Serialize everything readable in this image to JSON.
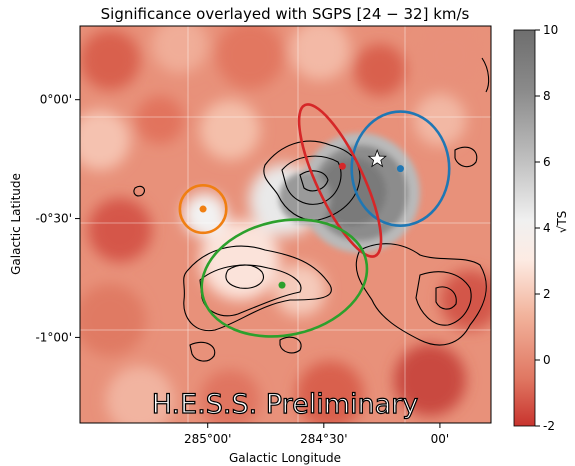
{
  "chart_data": {
    "type": "heatmap",
    "title": "Significance overlayed with SGPS [24 − 32] km/s",
    "xlabel": "Galactic Longitude",
    "ylabel": "Galactic Latitude",
    "x_ticks": [
      {
        "label": "285°00'",
        "value": 285.0
      },
      {
        "label": "284°30'",
        "value": 284.5
      },
      {
        "label": "00'",
        "value": 284.0
      }
    ],
    "y_ticks": [
      {
        "label": "0°00'",
        "value": 0.0
      },
      {
        "label": "-0°30'",
        "value": -0.5
      },
      {
        "label": "-1°00'",
        "value": -1.0
      }
    ],
    "xlim": [
      285.55,
      283.78
    ],
    "ylim": [
      -1.36,
      0.31
    ],
    "colorbar": {
      "label": "√TS",
      "range": [
        -2,
        10
      ],
      "ticks": [
        "-2",
        "0",
        "2",
        "4",
        "6",
        "8",
        "10"
      ],
      "colors": [
        "#c8342e",
        "#e07762",
        "#f2b39c",
        "#fdebe3",
        "#f0f0f0",
        "#bdbdbd",
        "#8a8a8a",
        "#6e6e6e"
      ]
    },
    "watermark": "H.E.S.S. Preliminary",
    "markers": [
      {
        "name": "star",
        "l": 284.27,
        "b": -0.25,
        "color": "#ffffff"
      },
      {
        "name": "orange-dot",
        "l": 285.02,
        "b": -0.46,
        "color": "#f07f12"
      },
      {
        "name": "red-dot",
        "l": 284.42,
        "b": -0.28,
        "color": "#d62728"
      },
      {
        "name": "blue-dot",
        "l": 284.17,
        "b": -0.29,
        "color": "#1f77b4"
      },
      {
        "name": "green-dot",
        "l": 284.68,
        "b": -0.78,
        "color": "#2ca02c"
      }
    ],
    "ellipses": [
      {
        "name": "orange",
        "cx": 285.02,
        "cy": -0.46,
        "rx": 0.1,
        "ry": 0.1,
        "angle": 0,
        "color": "#f07f12"
      },
      {
        "name": "blue",
        "cx": 284.17,
        "cy": -0.29,
        "rx": 0.21,
        "ry": 0.24,
        "angle": 0,
        "color": "#1f77b4"
      },
      {
        "name": "red",
        "cx": 284.43,
        "cy": -0.34,
        "rx": 0.1,
        "ry": 0.35,
        "angle": -25,
        "color": "#d62728"
      },
      {
        "name": "green",
        "cx": 284.67,
        "cy": -0.75,
        "rx": 0.36,
        "ry": 0.24,
        "angle": -12,
        "color": "#2ca02c"
      }
    ]
  }
}
